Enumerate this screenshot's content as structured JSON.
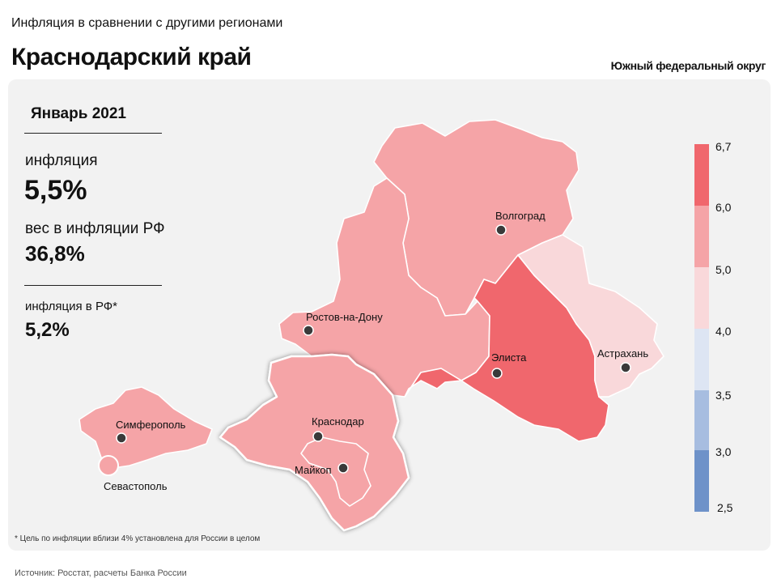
{
  "header": {
    "supertitle": "Инфляция в сравнении с другими регионами",
    "title": "Краснодарский край",
    "district": "Южный федеральный округ"
  },
  "stats": {
    "period": "Январь 2021",
    "inflation_label": "инфляция",
    "inflation_value": "5,5%",
    "weight_label": "вес в инфляции РФ",
    "weight_value": "36,8%",
    "rf_label": "инфляция в РФ*",
    "rf_value": "5,2%"
  },
  "cities": {
    "volgograd": "Волгоград",
    "rostov": "Ростов-на-Дону",
    "elista": "Элиста",
    "astrakhan": "Астрахань",
    "simferopol": "Симферополь",
    "krasnodar": "Краснодар",
    "maykop": "Майкоп",
    "sevastopol": "Севастополь"
  },
  "legend": {
    "ticks": [
      "6,7",
      "6,0",
      "5,0",
      "4,0",
      "3,5",
      "3,0",
      "2,5"
    ],
    "colors": [
      "#f0676d",
      "#f5a4a7",
      "#f9d8da",
      "#dde5f3",
      "#a7bde0",
      "#6e92c9"
    ]
  },
  "region_colors": {
    "krasnodar": "#f5a4a7",
    "volgograd": "#f5a4a7",
    "rostov": "#f5a4a7",
    "crimea": "#f5a4a7",
    "sevastopol": "#f5a4a7",
    "adygea": "#f5a4a7",
    "kalmykia": "#f0676d",
    "astrakhan": "#f9d8da"
  },
  "footnote": "* Цель по инфляции вблизи 4% установлена для России в целом",
  "source": "Источник: Росстат, расчеты Банка России"
}
